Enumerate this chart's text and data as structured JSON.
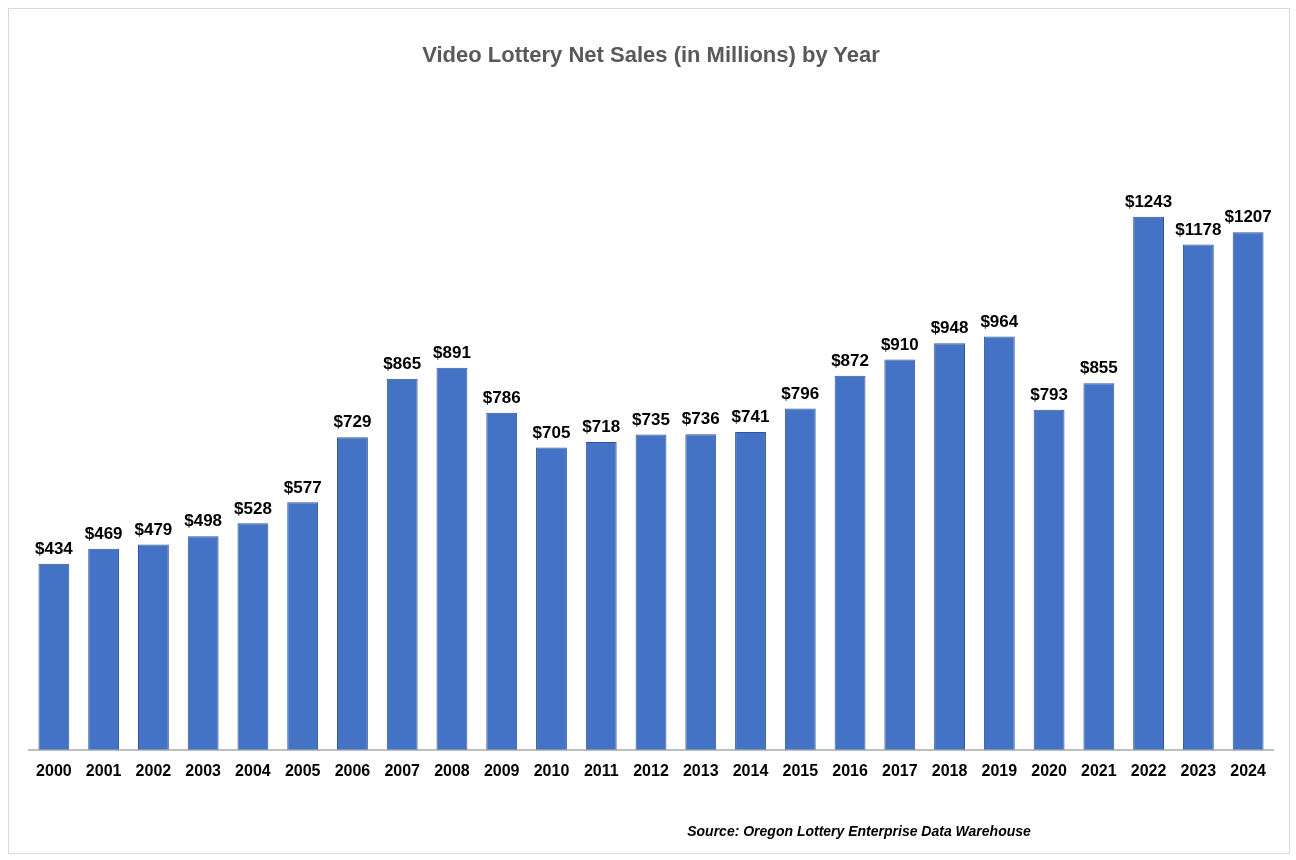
{
  "chart_data": {
    "type": "bar",
    "title": "Video Lottery Net Sales (in Millions) by Year",
    "categories": [
      "2000",
      "2001",
      "2002",
      "2003",
      "2004",
      "2005",
      "2006",
      "2007",
      "2008",
      "2009",
      "2010",
      "2011",
      "2012",
      "2013",
      "2014",
      "2015",
      "2016",
      "2017",
      "2018",
      "2019",
      "2020",
      "2021",
      "2022",
      "2023",
      "2024"
    ],
    "values": [
      434,
      469,
      479,
      498,
      528,
      577,
      729,
      865,
      891,
      786,
      705,
      718,
      735,
      736,
      741,
      796,
      872,
      910,
      948,
      964,
      793,
      855,
      1243,
      1178,
      1207
    ],
    "value_labels": [
      "$434",
      "$469",
      "$479",
      "$498",
      "$528",
      "$577",
      "$729",
      "$865",
      "$891",
      "$786",
      "$705",
      "$718",
      "$735",
      "$736",
      "$741",
      "$796",
      "$872",
      "$910",
      "$948",
      "$964",
      "$793",
      "$855",
      "$1243",
      "$1178",
      "$1207"
    ],
    "color": "#4472c4",
    "grid": false,
    "legend": false,
    "tick_labels": "x",
    "annotations": [
      "Source: Oregon Lottery Enterprise Data Warehouse"
    ]
  }
}
